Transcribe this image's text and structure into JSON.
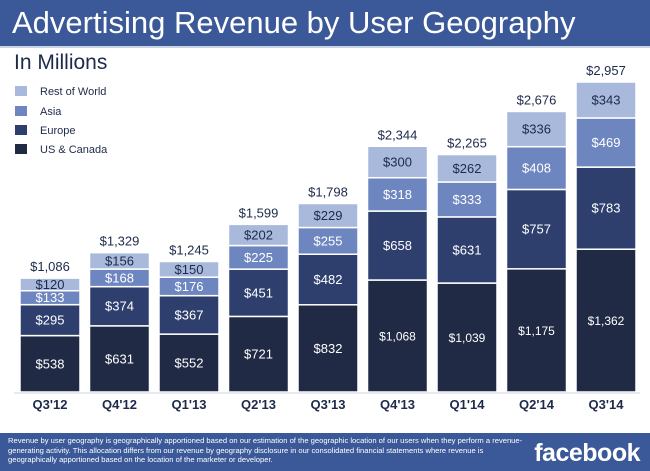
{
  "title": "Advertising Revenue by User Geography",
  "subtitle": "In Millions",
  "footnote": "Revenue by user geography is geographically apportioned based on our estimation of the geographic location of our users when they perform a revenue-generating activity. This allocation differs from our revenue by geography disclosure in our consolidated financial statements where revenue is geographically apportioned based on the location of the marketer or developer.",
  "logo": "facebook",
  "colors": {
    "header": "#3b5998",
    "us_canada": "#202a44",
    "europe": "#2e3f6e",
    "asia": "#6e86c0",
    "rest_of_world": "#a9b9dc",
    "label_dark": "#ffffff",
    "label_light": "#1d2a4a"
  },
  "chart_data": {
    "type": "bar",
    "stacked": true,
    "title": "Advertising Revenue by User Geography",
    "ylabel": "In Millions",
    "categories": [
      "Q3'12",
      "Q4'12",
      "Q1'13",
      "Q2'13",
      "Q3'13",
      "Q4'13",
      "Q1'14",
      "Q2'14",
      "Q3'14"
    ],
    "series": [
      {
        "name": "US & Canada",
        "values": [
          538,
          631,
          552,
          721,
          832,
          1068,
          1039,
          1175,
          1362
        ],
        "labels": [
          "$538",
          "$631",
          "$552",
          "$721",
          "$832",
          "$1,068",
          "$1,039",
          "$1,175",
          "$1,362"
        ]
      },
      {
        "name": "Europe",
        "values": [
          295,
          374,
          367,
          451,
          482,
          658,
          631,
          757,
          783
        ],
        "labels": [
          "$295",
          "$374",
          "$367",
          "$451",
          "$482",
          "$658",
          "$631",
          "$757",
          "$783"
        ]
      },
      {
        "name": "Asia",
        "values": [
          133,
          168,
          176,
          225,
          255,
          318,
          333,
          408,
          469
        ],
        "labels": [
          "$133",
          "$168",
          "$176",
          "$225",
          "$255",
          "$318",
          "$333",
          "$408",
          "$469"
        ]
      },
      {
        "name": "Rest of World",
        "values": [
          120,
          156,
          150,
          202,
          229,
          300,
          262,
          336,
          343
        ],
        "labels": [
          "$120",
          "$156",
          "$150",
          "$202",
          "$229",
          "$300",
          "$262",
          "$336",
          "$343"
        ]
      }
    ],
    "totals": [
      1086,
      1329,
      1245,
      1599,
      1798,
      2344,
      2265,
      2676,
      2957
    ],
    "total_labels": [
      "$1,086",
      "$1,329",
      "$1,245",
      "$1,599",
      "$1,798",
      "$2,344",
      "$2,265",
      "$2,676",
      "$2,957"
    ],
    "legend": [
      "Rest of World",
      "Asia",
      "Europe",
      "US & Canada"
    ],
    "legend_position": "top-left",
    "ylim": [
      0,
      2957
    ],
    "grid": false
  }
}
